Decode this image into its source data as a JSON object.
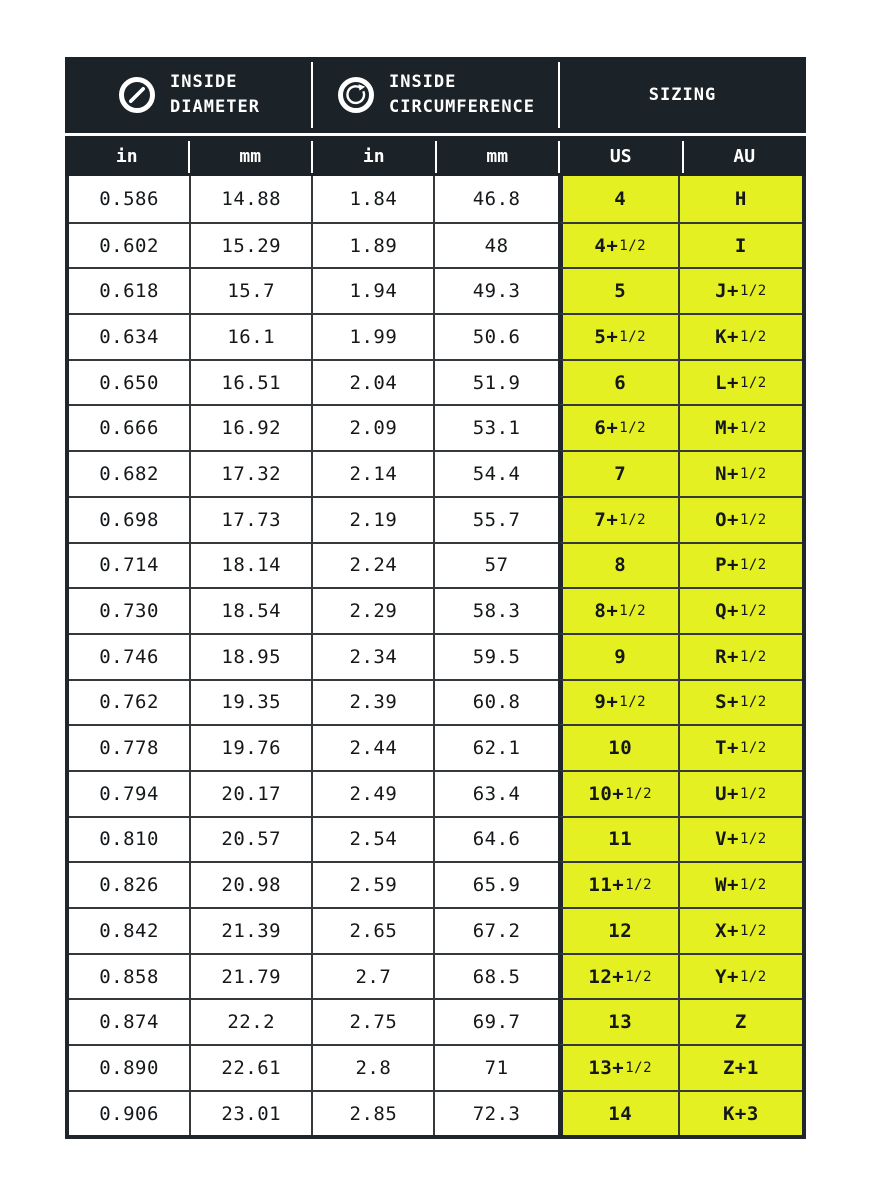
{
  "colors": {
    "header_bg": "#1b2328",
    "header_text": "#ffffff",
    "accent_yellow": "#e4f021",
    "grid_line": "#35393c",
    "frame": "#20262b",
    "cell_text": "#15181a",
    "page_bg": "#ffffff"
  },
  "header": {
    "groups": [
      {
        "icon": "diameter-icon",
        "title_line1": "INSIDE",
        "title_line2": "DIAMETER"
      },
      {
        "icon": "circumference-icon",
        "title_line1": "INSIDE",
        "title_line2": "CIRCUMFERENCE"
      },
      {
        "title_line1": "SIZING"
      }
    ],
    "units": [
      "in",
      "mm",
      "in",
      "mm",
      "US",
      "AU"
    ]
  },
  "chart_data": {
    "type": "table",
    "column_groups": [
      "INSIDE DIAMETER",
      "INSIDE CIRCUMFERENCE",
      "SIZING"
    ],
    "columns": [
      "in",
      "mm",
      "in",
      "mm",
      "US",
      "AU"
    ],
    "rows": [
      [
        "0.586",
        "14.88",
        "1.84",
        "46.8",
        "4",
        "H"
      ],
      [
        "0.602",
        "15.29",
        "1.89",
        "48",
        "4+1/2",
        "I"
      ],
      [
        "0.618",
        "15.7",
        "1.94",
        "49.3",
        "5",
        "J+1/2"
      ],
      [
        "0.634",
        "16.1",
        "1.99",
        "50.6",
        "5+1/2",
        "K+1/2"
      ],
      [
        "0.650",
        "16.51",
        "2.04",
        "51.9",
        "6",
        "L+1/2"
      ],
      [
        "0.666",
        "16.92",
        "2.09",
        "53.1",
        "6+1/2",
        "M+1/2"
      ],
      [
        "0.682",
        "17.32",
        "2.14",
        "54.4",
        "7",
        "N+1/2"
      ],
      [
        "0.698",
        "17.73",
        "2.19",
        "55.7",
        "7+1/2",
        "O+1/2"
      ],
      [
        "0.714",
        "18.14",
        "2.24",
        "57",
        "8",
        "P+1/2"
      ],
      [
        "0.730",
        "18.54",
        "2.29",
        "58.3",
        "8+1/2",
        "Q+1/2"
      ],
      [
        "0.746",
        "18.95",
        "2.34",
        "59.5",
        "9",
        "R+1/2"
      ],
      [
        "0.762",
        "19.35",
        "2.39",
        "60.8",
        "9+1/2",
        "S+1/2"
      ],
      [
        "0.778",
        "19.76",
        "2.44",
        "62.1",
        "10",
        "T+1/2"
      ],
      [
        "0.794",
        "20.17",
        "2.49",
        "63.4",
        "10+1/2",
        "U+1/2"
      ],
      [
        "0.810",
        "20.57",
        "2.54",
        "64.6",
        "11",
        "V+1/2"
      ],
      [
        "0.826",
        "20.98",
        "2.59",
        "65.9",
        "11+1/2",
        "W+1/2"
      ],
      [
        "0.842",
        "21.39",
        "2.65",
        "67.2",
        "12",
        "X+1/2"
      ],
      [
        "0.858",
        "21.79",
        "2.7",
        "68.5",
        "12+1/2",
        "Y+1/2"
      ],
      [
        "0.874",
        "22.2",
        "2.75",
        "69.7",
        "13",
        "Z"
      ],
      [
        "0.890",
        "22.61",
        "2.8",
        "71",
        "13+1/2",
        "Z+1"
      ],
      [
        "0.906",
        "23.01",
        "2.85",
        "72.3",
        "14",
        "K+3"
      ]
    ]
  }
}
